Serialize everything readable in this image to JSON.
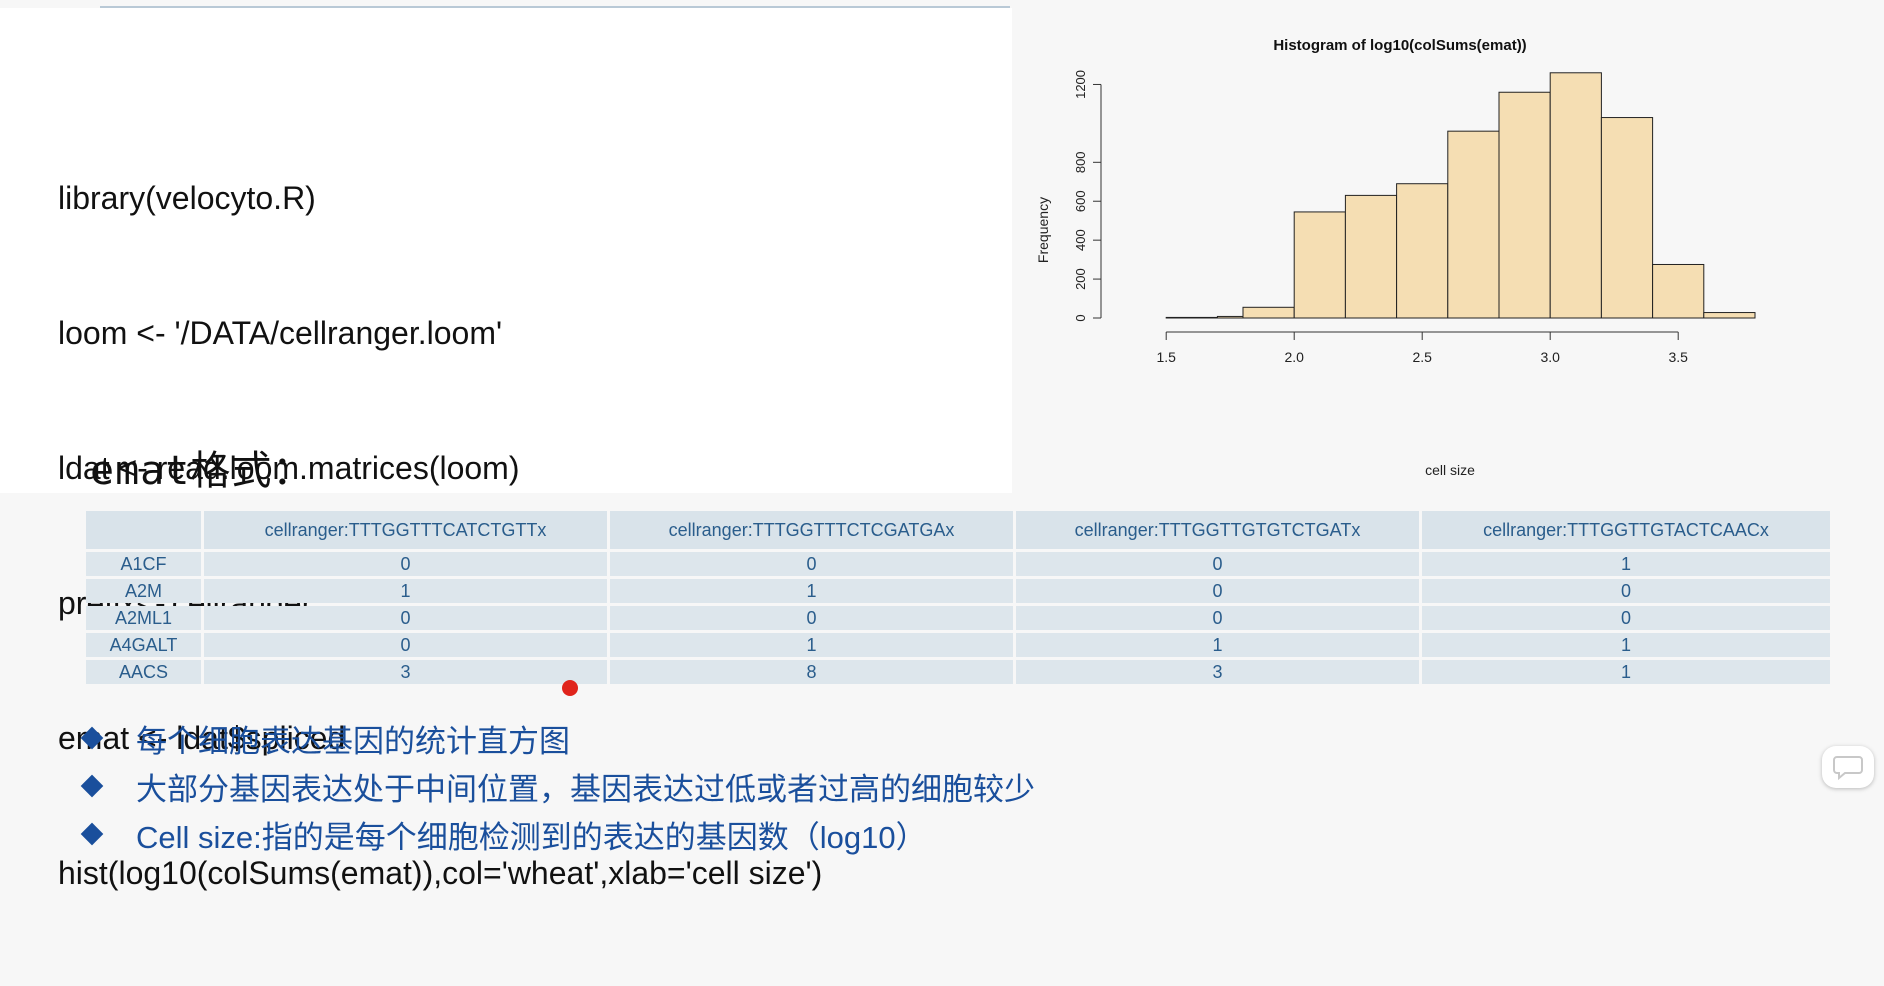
{
  "code": {
    "lines": [
      "library(velocyto.R)",
      "loom <- '/DATA/cellranger.loom'",
      "ldat <- read.loom.matrices(loom)",
      "prefix<-'cellranger'",
      "emat <- ldat$spliced",
      "hist(log10(colSums(emat)),col='wheat',xlab='cell size')"
    ]
  },
  "section_title": "emat格式：",
  "chart_data": {
    "type": "bar",
    "title": "Histogram of log10(colSums(emat))",
    "xlabel": "cell size",
    "ylabel": "Frequency",
    "bar_color": "#f5deb3",
    "bins": [
      {
        "from": 1.3,
        "to": 1.5,
        "count": 0
      },
      {
        "from": 1.5,
        "to": 1.7,
        "count": 3
      },
      {
        "from": 1.7,
        "to": 1.8,
        "count": 8
      },
      {
        "from": 1.8,
        "to": 2.0,
        "count": 55
      },
      {
        "from": 2.0,
        "to": 2.2,
        "count": 545
      },
      {
        "from": 2.2,
        "to": 2.4,
        "count": 630
      },
      {
        "from": 2.4,
        "to": 2.6,
        "count": 690
      },
      {
        "from": 2.6,
        "to": 2.8,
        "count": 960
      },
      {
        "from": 2.8,
        "to": 3.0,
        "count": 1160
      },
      {
        "from": 3.0,
        "to": 3.2,
        "count": 1260
      },
      {
        "from": 3.2,
        "to": 3.4,
        "count": 1030
      },
      {
        "from": 3.4,
        "to": 3.6,
        "count": 275
      },
      {
        "from": 3.6,
        "to": 3.8,
        "count": 28
      }
    ],
    "xticks": [
      "1.5",
      "2.0",
      "2.5",
      "3.0",
      "3.5"
    ],
    "yticks": [
      "0",
      "200",
      "400",
      "600",
      "800",
      "1200"
    ],
    "xlim": [
      1.3,
      3.8
    ],
    "ylim": [
      0,
      1300
    ]
  },
  "table": {
    "columns": [
      "",
      "cellranger:TTTGGTTTCATCTGTTx",
      "cellranger:TTTGGTTTCTCGATGAx",
      "cellranger:TTTGGTTGTGTCTGATx",
      "cellranger:TTTGGTTGTACTCAACx"
    ],
    "rows": [
      [
        "A1CF",
        "0",
        "0",
        "0",
        "1"
      ],
      [
        "A2M",
        "1",
        "1",
        "0",
        "0"
      ],
      [
        "A2ML1",
        "0",
        "0",
        "0",
        "0"
      ],
      [
        "A4GALT",
        "0",
        "1",
        "1",
        "1"
      ],
      [
        "AACS",
        "3",
        "8",
        "3",
        "1"
      ]
    ]
  },
  "bullets": [
    "每个细胞表达基因的统计直方图",
    "大部分基因表达处于中间位置，基因表达过低或者过高的细胞较少",
    "Cell size:指的是每个细胞检测到的表达的基因数（log10）"
  ],
  "colors": {
    "bar_fill": "#f5deb3",
    "accent_blue": "#1a4f9c",
    "table_text": "#2a5d8c",
    "table_header_bg": "#d9e3ea"
  },
  "icons": {
    "bullet": "diamond-bullet-icon",
    "chat": "chat-bubble-icon",
    "cursor_marker": "red-dot-icon"
  }
}
